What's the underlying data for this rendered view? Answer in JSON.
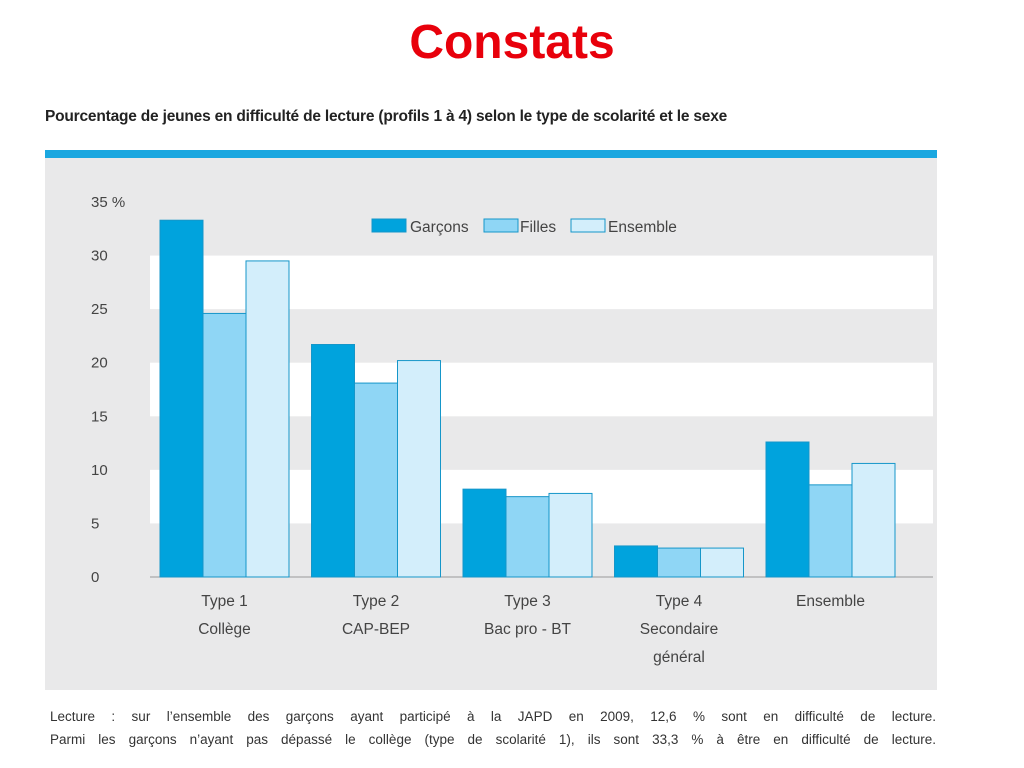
{
  "slide_title": "Constats",
  "chart_data": {
    "type": "bar",
    "title": "Pourcentage de jeunes en difficulté de lecture (profils 1 à 4) selon le type de scolarité et le sexe",
    "categories": [
      [
        "Type 1",
        "Collège"
      ],
      [
        "Type 2",
        "CAP-BEP"
      ],
      [
        "Type 3",
        "Bac pro - BT"
      ],
      [
        "Type 4",
        "Secondaire",
        "général"
      ],
      [
        "Ensemble"
      ]
    ],
    "series": [
      {
        "name": "Garçons",
        "values": [
          33.3,
          21.7,
          8.2,
          2.9,
          12.6
        ],
        "color": "#00a3dd"
      },
      {
        "name": "Filles",
        "values": [
          24.6,
          18.1,
          7.5,
          2.7,
          8.6
        ],
        "color": "#8fd6f5"
      },
      {
        "name": "Ensemble",
        "values": [
          29.5,
          20.2,
          7.8,
          2.7,
          10.6
        ],
        "color": "#d3eefb"
      }
    ],
    "y_ticks": [
      "0",
      "5",
      "10",
      "15",
      "20",
      "25",
      "30",
      "35 %"
    ],
    "ylim": [
      0,
      35
    ],
    "legend_position": "top-center",
    "grid": "alternating horizontal bands"
  },
  "note": {
    "line1": "Lecture : sur l’ensemble des garçons ayant participé à la JAPD en 2009, 12,6 % sont en difficulté de lecture.",
    "line2": "Parmi les garçons n’ayant pas dépassé le collège (type de scolarité 1), ils sont 33,3 % à être en difficulté de lecture."
  }
}
